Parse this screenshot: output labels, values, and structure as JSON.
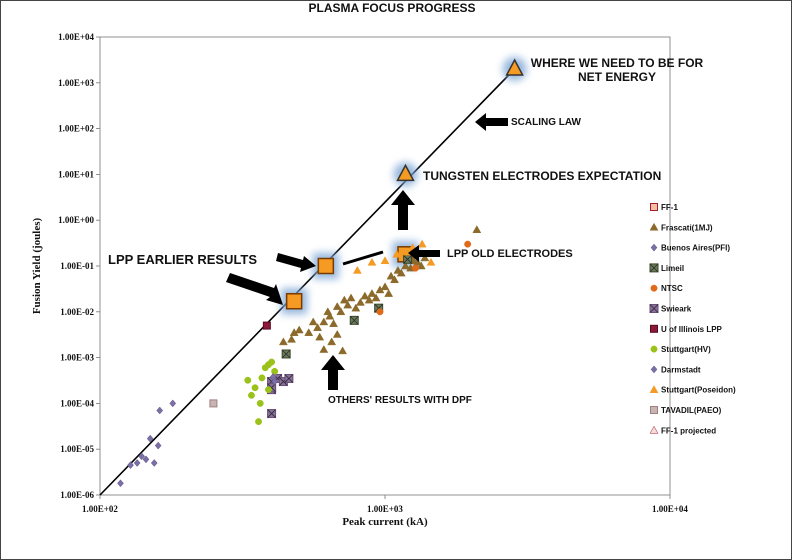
{
  "chart_data": {
    "type": "scatter",
    "title": "PLASMA FOCUS PROGRESS",
    "xlabel": "Peak current (kA)",
    "ylabel": "Fusion Yield (joules)",
    "xscale": "log",
    "yscale": "log",
    "xlim": [
      100,
      10000
    ],
    "ylim": [
      1e-06,
      10000
    ],
    "grid": false,
    "legend_position": "right",
    "x_tick_labels": [
      {
        "value": 100,
        "label": "1.00E+02"
      },
      {
        "value": 1000,
        "label": "1.00E+03"
      },
      {
        "value": 10000,
        "label": "1.00E+04"
      }
    ],
    "y_tick_labels": [
      {
        "value": 1e-06,
        "label": "1.00E-06"
      },
      {
        "value": 1e-05,
        "label": "1.00E-05"
      },
      {
        "value": 0.0001,
        "label": "1.00E-04"
      },
      {
        "value": 0.001,
        "label": "1.00E-03"
      },
      {
        "value": 0.01,
        "label": "1.00E-02"
      },
      {
        "value": 0.1,
        "label": "1.00E-01"
      },
      {
        "value": 1,
        "label": "1.00E+00"
      },
      {
        "value": 10,
        "label": "1.00E+01"
      },
      {
        "value": 100,
        "label": "1.00E+02"
      },
      {
        "value": 1000,
        "label": "1.00E+03"
      },
      {
        "value": 10000,
        "label": "1.00E+04"
      }
    ],
    "scaling_law_line": {
      "x": [
        100,
        2850
      ],
      "y": [
        1e-06,
        2000
      ]
    },
    "series": [
      {
        "name": "FF-1",
        "marker": "square-big",
        "color": "#f59a23",
        "edge": "#7a3b00",
        "points": [
          [
            480,
            0.017
          ],
          [
            620,
            0.1
          ],
          [
            1180,
            0.18
          ]
        ]
      },
      {
        "name": "Frascati(1MJ)",
        "marker": "triangle",
        "color": "#8b6a2b",
        "edge": "#8b6a2b",
        "points": [
          [
            470,
            0.0025
          ],
          [
            500,
            0.004
          ],
          [
            540,
            0.0035
          ],
          [
            560,
            0.006
          ],
          [
            580,
            0.0045
          ],
          [
            590,
            0.0028
          ],
          [
            610,
            0.006
          ],
          [
            630,
            0.01
          ],
          [
            640,
            0.008
          ],
          [
            660,
            0.0055
          ],
          [
            680,
            0.013
          ],
          [
            700,
            0.01
          ],
          [
            720,
            0.018
          ],
          [
            740,
            0.014
          ],
          [
            760,
            0.02
          ],
          [
            790,
            0.012
          ],
          [
            820,
            0.016
          ],
          [
            850,
            0.022
          ],
          [
            880,
            0.018
          ],
          [
            900,
            0.025
          ],
          [
            930,
            0.02
          ],
          [
            960,
            0.03
          ],
          [
            1000,
            0.035
          ],
          [
            1030,
            0.025
          ],
          [
            1050,
            0.06
          ],
          [
            1080,
            0.05
          ],
          [
            1110,
            0.08
          ],
          [
            1140,
            0.07
          ],
          [
            1180,
            0.1
          ],
          [
            1230,
            0.09
          ],
          [
            1260,
            0.13
          ],
          [
            1300,
            0.12
          ],
          [
            1340,
            0.1
          ],
          [
            1380,
            0.15
          ],
          [
            2100,
            0.62
          ],
          [
            610,
            0.0015
          ],
          [
            650,
            0.0022
          ],
          [
            680,
            0.0032
          ],
          [
            440,
            0.0022
          ],
          [
            480,
            0.0035
          ],
          [
            710,
            0.0014
          ]
        ]
      },
      {
        "name": "Buenos Aires(PFI)",
        "marker": "diamond",
        "color": "#7b6fa6",
        "edge": "#5b4f86",
        "points": [
          [
            118,
            1.8e-06
          ],
          [
            128,
            4.5e-06
          ],
          [
            135,
            5e-06
          ],
          [
            140,
            7e-06
          ],
          [
            145,
            6e-06
          ],
          [
            150,
            1.7e-05
          ],
          [
            155,
            5e-06
          ],
          [
            160,
            1.2e-05
          ],
          [
            162,
            7e-05
          ],
          [
            180,
            0.0001
          ]
        ]
      },
      {
        "name": "Limeil",
        "marker": "square-x",
        "color": "#6b7b5a",
        "edge": "#3a4a2a",
        "points": [
          [
            450,
            0.0012
          ],
          [
            780,
            0.0065
          ],
          [
            950,
            0.012
          ],
          [
            1200,
            0.14
          ]
        ]
      },
      {
        "name": "NTSC",
        "marker": "circle",
        "color": "#e06a1a",
        "edge": "#e06a1a",
        "points": [
          [
            960,
            0.01
          ],
          [
            1280,
            0.09
          ],
          [
            1950,
            0.3
          ]
        ]
      },
      {
        "name": "Swieark",
        "marker": "square-x",
        "color": "#8a6f9c",
        "edge": "#6a4f7c",
        "points": [
          [
            400,
            6e-05
          ],
          [
            400,
            0.0002
          ],
          [
            400,
            0.0003
          ],
          [
            420,
            0.00035
          ],
          [
            440,
            0.0003
          ],
          [
            460,
            0.00035
          ],
          [
            400,
            0.00022
          ]
        ]
      },
      {
        "name": "U of Illinois LPP",
        "marker": "square",
        "color": "#8b1a3a",
        "edge": "#5a0a20",
        "points": [
          [
            385,
            0.005
          ]
        ]
      },
      {
        "name": "Stuttgart(HV)",
        "marker": "circle",
        "color": "#9ac21a",
        "edge": "#9ac21a",
        "points": [
          [
            330,
            0.00032
          ],
          [
            340,
            0.00015
          ],
          [
            350,
            0.00022
          ],
          [
            360,
            4e-05
          ],
          [
            365,
            0.0001
          ],
          [
            370,
            0.00036
          ],
          [
            380,
            0.0006
          ],
          [
            390,
            0.0007
          ],
          [
            400,
            0.0008
          ],
          [
            410,
            0.0005
          ],
          [
            390,
            0.0002
          ]
        ]
      },
      {
        "name": "Darmstadt",
        "marker": "diamond",
        "color": "#7b6fa6",
        "edge": "#5b4f86",
        "points": [
          [
            405,
            0.00038
          ],
          [
            410,
            0.0003
          ]
        ]
      },
      {
        "name": "Stuttgart(Poseidon)",
        "marker": "triangle",
        "color": "#f59a23",
        "edge": "#f59a23",
        "points": [
          [
            800,
            0.08
          ],
          [
            900,
            0.12
          ],
          [
            1000,
            0.13
          ],
          [
            1100,
            0.18
          ],
          [
            1200,
            0.2
          ],
          [
            1250,
            0.25
          ],
          [
            1350,
            0.3
          ],
          [
            1450,
            0.12
          ]
        ]
      },
      {
        "name": "TAVADIL(PAEO)",
        "marker": "square",
        "color": "#c9b4b4",
        "edge": "#a08080",
        "points": [
          [
            250,
            0.0001
          ]
        ]
      },
      {
        "name": "FF-1 projected",
        "marker": "triangle-big",
        "color": "#f59a23",
        "edge": "#333333",
        "points": [
          [
            1180,
            10
          ],
          [
            2850,
            2000
          ]
        ]
      }
    ],
    "annotations": [
      {
        "id": "net-energy-1",
        "text": "WHERE WE NEED TO BE FOR"
      },
      {
        "id": "net-energy-2",
        "text": "NET ENERGY"
      },
      {
        "id": "scaling-law",
        "text": "SCALING LAW"
      },
      {
        "id": "tungsten",
        "text": "TUNGSTEN ELECTRODES EXPECTATION"
      },
      {
        "id": "old-electrodes",
        "text": "LPP OLD ELECTRODES"
      },
      {
        "id": "earlier",
        "text": "LPP EARLIER RESULTS"
      },
      {
        "id": "others",
        "text": "OTHERS' RESULTS WITH DPF"
      }
    ]
  }
}
